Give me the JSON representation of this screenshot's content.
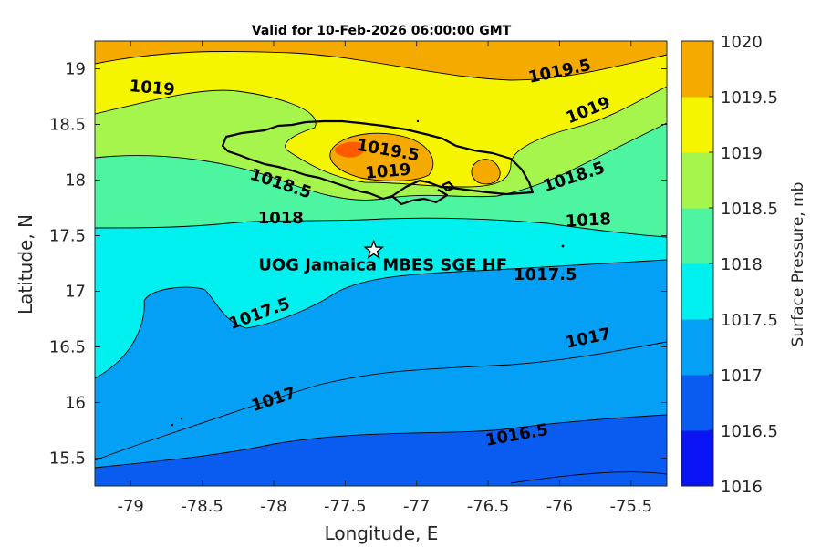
{
  "chart_data": {
    "type": "contour",
    "title": "Valid for 10-Feb-2026 06:00:00 GMT",
    "xlabel": "Longitude, E",
    "ylabel": "Latitude, N",
    "xlim": [
      -79.25,
      -75.25
    ],
    "ylim": [
      15.25,
      19.25
    ],
    "xticks": [
      -79,
      -78.5,
      -78,
      -77.5,
      -77,
      -76.5,
      -76,
      -75.5
    ],
    "yticks": [
      15.5,
      16,
      16.5,
      17,
      17.5,
      18,
      18.5,
      19
    ],
    "colorbar": {
      "label": "Surface Pressure, mb",
      "levels": [
        1016,
        1016.5,
        1017,
        1017.5,
        1018,
        1018.5,
        1019,
        1019.5,
        1020
      ],
      "colors": [
        "#0a14f5",
        "#0a5cf0",
        "#04a0f5",
        "#00f0f0",
        "#4df5a0",
        "#a6f54d",
        "#f5f500",
        "#f5aa00",
        "#ff5a00"
      ]
    },
    "contour_labels": [
      {
        "text": "1019",
        "lon": -78.85,
        "lat": 18.83,
        "angle": 5
      },
      {
        "text": "1019.5",
        "lon": -76.0,
        "lat": 18.98,
        "angle": -12
      },
      {
        "text": "1019",
        "lon": -75.8,
        "lat": 18.63,
        "angle": -22
      },
      {
        "text": "1019.5",
        "lon": -77.2,
        "lat": 18.27,
        "angle": 10
      },
      {
        "text": "1019",
        "lon": -77.2,
        "lat": 18.08,
        "angle": -5
      },
      {
        "text": "1018.5",
        "lon": -77.95,
        "lat": 17.97,
        "angle": 18
      },
      {
        "text": "1018.5",
        "lon": -75.9,
        "lat": 18.03,
        "angle": -18
      },
      {
        "text": "1018",
        "lon": -77.95,
        "lat": 17.66,
        "angle": 0
      },
      {
        "text": "1018",
        "lon": -75.8,
        "lat": 17.64,
        "angle": -3
      },
      {
        "text": "1017.5",
        "lon": -76.1,
        "lat": 17.15,
        "angle": 0
      },
      {
        "text": "1017.5",
        "lon": -78.1,
        "lat": 16.8,
        "angle": -20
      },
      {
        "text": "1017",
        "lon": -75.8,
        "lat": 16.58,
        "angle": -12
      },
      {
        "text": "1017",
        "lon": -78.0,
        "lat": 16.03,
        "angle": -18
      },
      {
        "text": "1016.5",
        "lon": -76.3,
        "lat": 15.71,
        "angle": -10
      }
    ],
    "station": {
      "name": "UOG Jamaica MBES SGE HF",
      "lon": -77.3,
      "lat": 17.37
    }
  }
}
